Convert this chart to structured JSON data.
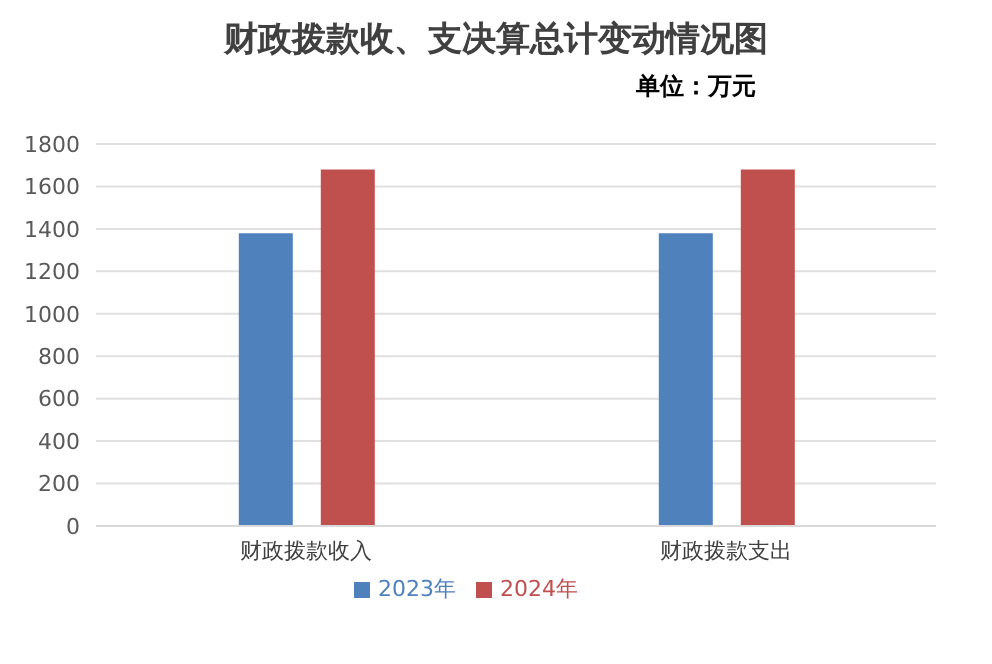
{
  "chart_data": {
    "type": "bar",
    "title": "财政拨款收、支决算总计变动情况图",
    "subtitle": "单位：万元",
    "categories": [
      "财政拨款收入",
      "财政拨款支出"
    ],
    "series": [
      {
        "name": "2023年",
        "color": "#4f81bd",
        "values": [
          1380,
          1380
        ]
      },
      {
        "name": "2024年",
        "color": "#c0504d",
        "values": [
          1680,
          1680
        ]
      }
    ],
    "ylim": [
      0,
      1800
    ],
    "yticks": [
      0,
      200,
      400,
      600,
      800,
      1000,
      1200,
      1400,
      1600,
      1800
    ],
    "grid": "y",
    "legend": "bottom"
  }
}
